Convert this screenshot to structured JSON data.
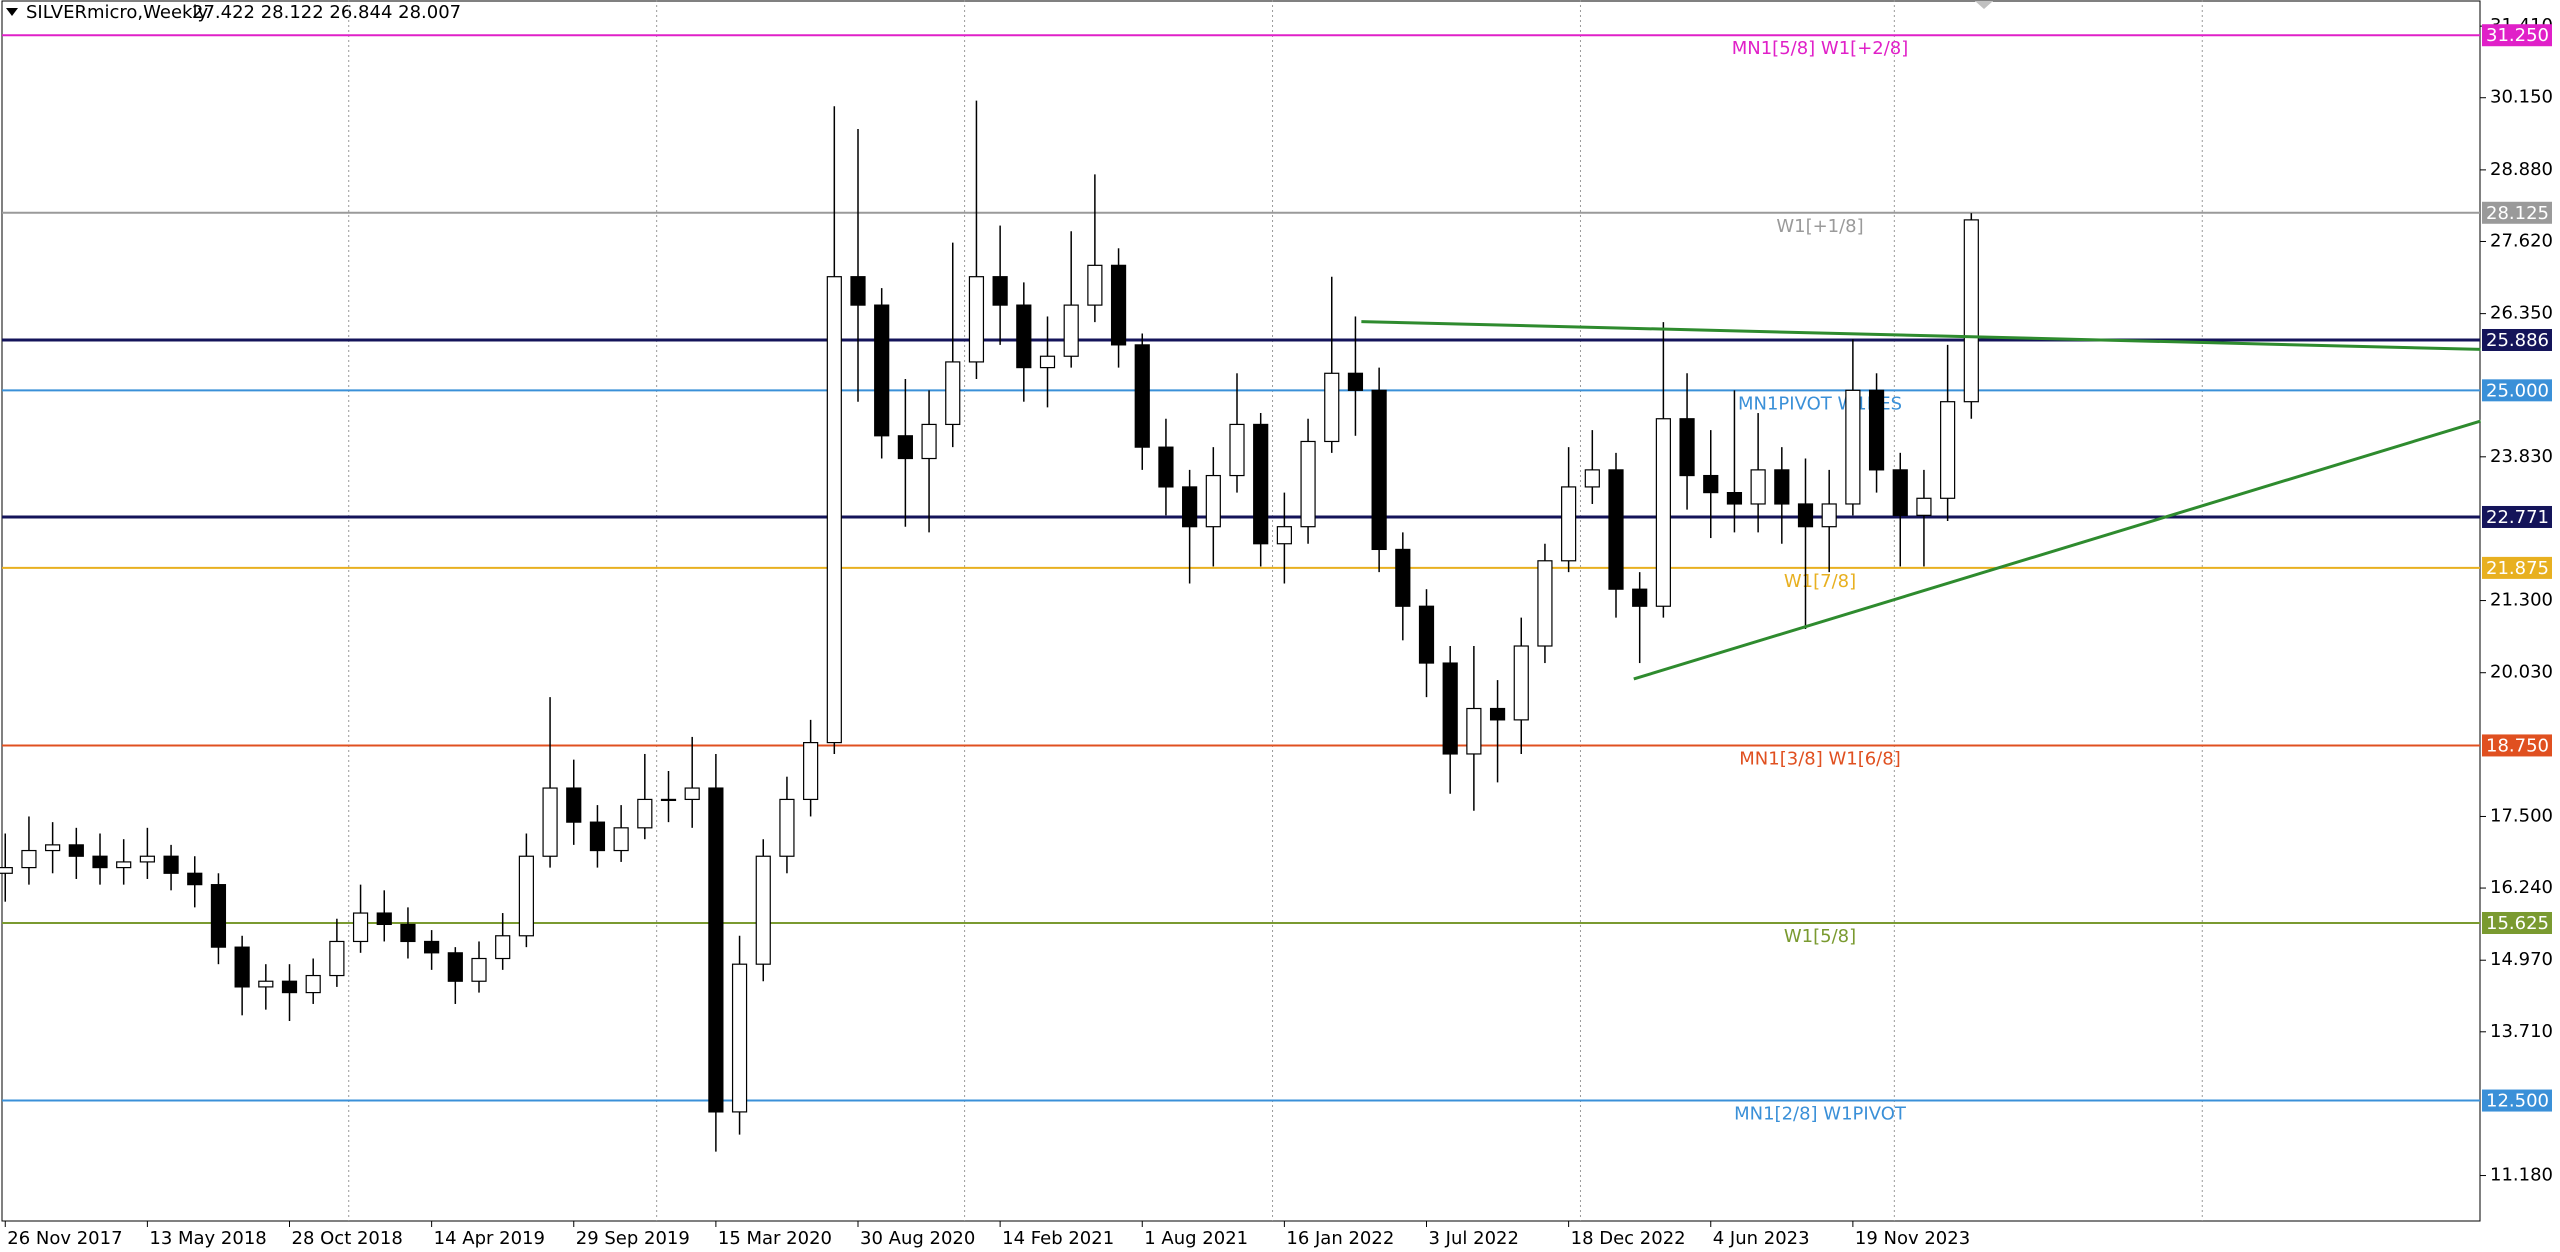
{
  "chart_data": {
    "type": "candlestick",
    "title": "SILVERmicro,Weekly",
    "subtitle": "27.422 28.122 26.844 28.007",
    "x": [
      0,
      4,
      8,
      12,
      16,
      20,
      24,
      28,
      32,
      36,
      40,
      44,
      48,
      52,
      56,
      60,
      64,
      68,
      72,
      76,
      80,
      84,
      88,
      92,
      96,
      100,
      104,
      108,
      112,
      116,
      120,
      124,
      128,
      132,
      136,
      140,
      144,
      148,
      152,
      156,
      160,
      164,
      168,
      172,
      176,
      180,
      184,
      188,
      192,
      196,
      200,
      204,
      208,
      212,
      216,
      220,
      224,
      228,
      232,
      236,
      240,
      244,
      248,
      252,
      256,
      260,
      264,
      268,
      272,
      276,
      280,
      284,
      288,
      292,
      296,
      300,
      304,
      308,
      312,
      316,
      320,
      324,
      328,
      332
    ],
    "open": [
      16.5,
      16.6,
      16.9,
      17.0,
      16.8,
      16.6,
      16.7,
      16.8,
      16.5,
      16.3,
      15.2,
      14.5,
      14.6,
      14.4,
      14.7,
      15.3,
      15.8,
      15.6,
      15.3,
      15.1,
      14.6,
      15.0,
      15.4,
      16.8,
      18.0,
      17.4,
      16.9,
      17.3,
      17.8,
      17.8,
      18.0,
      12.3,
      14.9,
      16.8,
      17.8,
      18.8,
      27.0,
      26.5,
      24.2,
      23.8,
      24.4,
      25.5,
      27.0,
      26.5,
      25.4,
      25.6,
      26.5,
      27.2,
      25.8,
      24.0,
      23.3,
      22.6,
      23.5,
      24.4,
      22.3,
      22.6,
      24.1,
      25.3,
      25.0,
      22.2,
      21.2,
      20.2,
      18.6,
      19.4,
      19.2,
      20.5,
      22.0,
      23.3,
      23.6,
      21.5,
      21.2,
      24.5,
      23.5,
      23.2,
      23.0,
      23.6,
      23.0,
      22.6,
      23.0,
      25.0,
      23.6,
      22.8,
      23.1,
      24.8
    ],
    "high": [
      17.2,
      17.5,
      17.4,
      17.3,
      17.2,
      17.1,
      17.3,
      17.0,
      16.8,
      16.5,
      15.4,
      14.9,
      14.9,
      15.0,
      15.7,
      16.3,
      16.2,
      15.9,
      15.5,
      15.2,
      15.3,
      15.8,
      17.2,
      19.6,
      18.5,
      17.7,
      17.7,
      18.6,
      18.3,
      18.9,
      18.6,
      15.4,
      17.1,
      18.2,
      19.2,
      30.0,
      29.6,
      26.8,
      25.2,
      25.0,
      27.6,
      30.1,
      27.9,
      26.9,
      26.3,
      27.8,
      28.8,
      27.5,
      26.0,
      24.5,
      23.6,
      24.0,
      25.3,
      24.6,
      23.2,
      24.5,
      27.0,
      26.3,
      25.4,
      22.5,
      21.5,
      20.5,
      20.5,
      19.9,
      21.0,
      22.3,
      24.0,
      24.3,
      23.9,
      21.8,
      26.2,
      25.3,
      24.3,
      25.0,
      24.6,
      24.0,
      23.8,
      23.6,
      25.9,
      25.3,
      23.9,
      23.6,
      25.8,
      28.12
    ],
    "low": [
      16.0,
      16.3,
      16.5,
      16.4,
      16.3,
      16.3,
      16.4,
      16.2,
      15.9,
      14.9,
      14.0,
      14.1,
      13.9,
      14.2,
      14.5,
      15.1,
      15.3,
      15.0,
      14.8,
      14.2,
      14.4,
      14.8,
      15.2,
      16.6,
      17.0,
      16.6,
      16.7,
      17.1,
      17.4,
      17.3,
      11.6,
      11.9,
      14.6,
      16.5,
      17.5,
      18.6,
      24.8,
      23.8,
      22.6,
      22.5,
      24.0,
      25.2,
      25.8,
      24.8,
      24.7,
      25.4,
      26.2,
      25.4,
      23.6,
      22.8,
      21.6,
      21.9,
      23.2,
      21.9,
      21.6,
      22.3,
      23.9,
      24.2,
      21.8,
      20.6,
      19.6,
      17.9,
      17.6,
      18.1,
      18.6,
      20.2,
      21.8,
      23.0,
      21.0,
      20.2,
      21.0,
      22.9,
      22.4,
      22.5,
      22.5,
      22.3,
      20.8,
      21.8,
      22.8,
      23.2,
      21.9,
      21.9,
      22.7,
      24.5
    ],
    "close": [
      16.6,
      16.9,
      17.0,
      16.8,
      16.6,
      16.7,
      16.8,
      16.5,
      16.3,
      15.2,
      14.5,
      14.6,
      14.4,
      14.7,
      15.3,
      15.8,
      15.6,
      15.3,
      15.1,
      14.6,
      15.0,
      15.4,
      16.8,
      18.0,
      17.4,
      16.9,
      17.3,
      17.8,
      17.8,
      18.0,
      12.3,
      14.9,
      16.8,
      17.8,
      18.8,
      27.0,
      26.5,
      24.2,
      23.8,
      24.4,
      25.5,
      27.0,
      26.5,
      25.4,
      25.6,
      26.5,
      27.2,
      25.8,
      24.0,
      23.3,
      22.6,
      23.5,
      24.4,
      22.3,
      22.6,
      24.1,
      25.3,
      25.0,
      22.2,
      21.2,
      20.2,
      18.6,
      19.4,
      19.2,
      20.5,
      22.0,
      23.3,
      23.6,
      21.5,
      21.2,
      24.5,
      23.5,
      23.2,
      23.0,
      23.6,
      23.0,
      22.6,
      23.0,
      25.0,
      23.6,
      22.8,
      23.1,
      24.8,
      28.0
    ],
    "xlim": [
      -0.55,
      417.9
    ],
    "ylim": [
      10.38,
      31.87
    ],
    "xticks": [
      {
        "value": 0,
        "label": "26 Nov 2017"
      },
      {
        "value": 24,
        "label": "13 May 2018"
      },
      {
        "value": 48,
        "label": "28 Oct 2018"
      },
      {
        "value": 72,
        "label": "14 Apr 2019"
      },
      {
        "value": 96,
        "label": "29 Sep 2019"
      },
      {
        "value": 120,
        "label": "15 Mar 2020"
      },
      {
        "value": 144,
        "label": "30 Aug 2020"
      },
      {
        "value": 168,
        "label": "14 Feb 2021"
      },
      {
        "value": 192,
        "label": "1 Aug 2021"
      },
      {
        "value": 216,
        "label": "16 Jan 2022"
      },
      {
        "value": 240,
        "label": "3 Jul 2022"
      },
      {
        "value": 264,
        "label": "18 Dec 2022"
      },
      {
        "value": 288,
        "label": "4 Jun 2023"
      },
      {
        "value": 312,
        "label": "19 Nov 2023"
      }
    ],
    "xgrid": [
      58,
      110,
      162,
      214,
      266,
      319,
      371
    ],
    "yticks": [
      {
        "value": 31.41,
        "label": "31.410"
      },
      {
        "value": 30.15,
        "label": "30.150"
      },
      {
        "value": 28.88,
        "label": "28.880"
      },
      {
        "value": 27.62,
        "label": "27.620"
      },
      {
        "value": 26.35,
        "label": "26.350"
      },
      {
        "value": 23.83,
        "label": "23.830"
      },
      {
        "value": 21.3,
        "label": "21.300"
      },
      {
        "value": 20.03,
        "label": "20.030"
      },
      {
        "value": 17.5,
        "label": "17.500"
      },
      {
        "value": 16.24,
        "label": "16.240"
      },
      {
        "value": 14.97,
        "label": "14.970"
      },
      {
        "value": 13.71,
        "label": "13.710"
      },
      {
        "value": 11.18,
        "label": "11.180"
      }
    ],
    "levels": [
      {
        "value": 31.25,
        "value_label": "31.250",
        "label": "MN1[5/8] W1[+2/8]",
        "color": "#e020c8"
      },
      {
        "value": 28.125,
        "value_label": "28.125",
        "label": "W1[+1/8]",
        "color": "#9a9a9a"
      },
      {
        "value": 25.886,
        "value_label": "25.886",
        "color": "#14145a"
      },
      {
        "value": 25.0,
        "value_label": "25.000",
        "label": "MN1PIVOT W1RES",
        "color": "#3a90d8"
      },
      {
        "value": 22.771,
        "value_label": "22.771",
        "color": "#14145a"
      },
      {
        "value": 21.875,
        "value_label": "21.875",
        "label": "W1[7/8]",
        "color": "#e8b020"
      },
      {
        "value": 18.75,
        "value_label": "18.750",
        "label": "MN1[3/8] W1[6/8]",
        "color": "#e05020"
      },
      {
        "value": 15.625,
        "value_label": "15.625",
        "label": "W1[5/8]",
        "color": "#7a9a30"
      },
      {
        "value": 12.5,
        "value_label": "12.500",
        "label": "MN1[2/8] W1PIVOT",
        "color": "#3a90d8"
      }
    ],
    "trendlines": [
      {
        "color": "#2e8b2e",
        "x": [
          229,
          418
        ],
        "y": [
          26.21,
          25.72
        ]
      },
      {
        "color": "#2e8b2e",
        "x": [
          275,
          418
        ],
        "y": [
          19.92,
          24.46
        ]
      }
    ]
  }
}
